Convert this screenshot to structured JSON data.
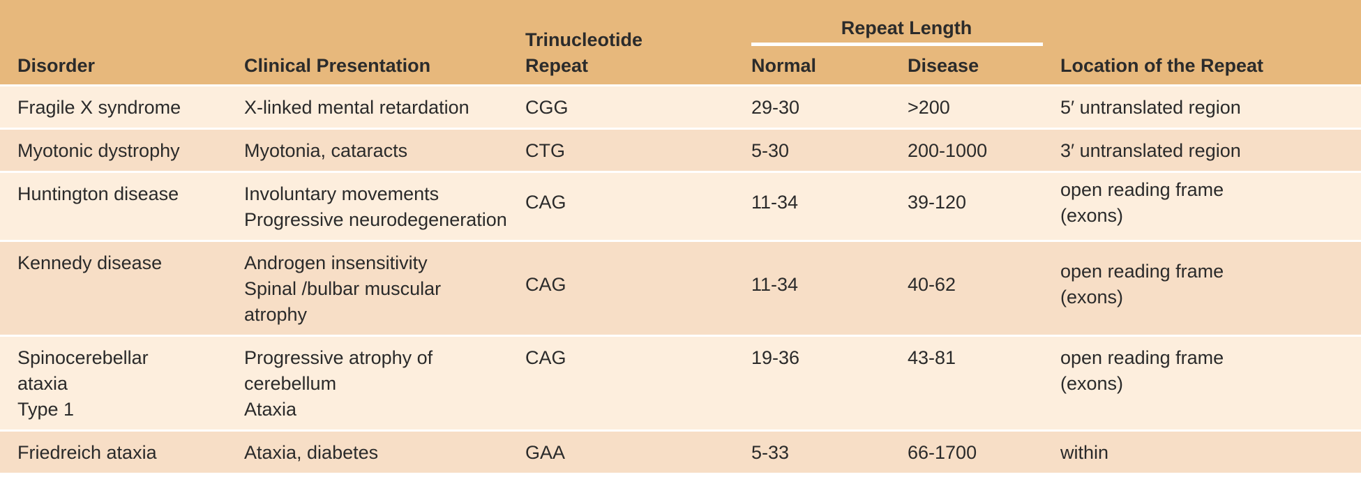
{
  "header": {
    "disorder": "Disorder",
    "clinical_presentation": "Clinical Presentation",
    "trinucleotide_repeat": "Trinucleotide Repeat",
    "repeat_length": "Repeat Length",
    "normal": "Normal",
    "disease": "Disease",
    "location": "Location of the Repeat"
  },
  "rows": [
    [
      "Fragile X syndrome",
      "X-linked mental retardation",
      "CGG",
      "29-30",
      ">200",
      "5′ untranslated region"
    ],
    [
      "Myotonic dystrophy",
      "Myotonia, cataracts",
      "CTG",
      "5-30",
      "200-1000",
      "3′ untranslated region"
    ],
    [
      "Huntington disease",
      [
        "Involuntary movements",
        "Progressive neurodegeneration"
      ],
      "CAG",
      "11-34",
      "39-120",
      "open reading frame (exons)"
    ],
    [
      "Kennedy disease",
      [
        "Androgen insensitivity",
        "Spinal /bulbar muscular atrophy"
      ],
      "CAG",
      "11-34",
      "40-62",
      "open reading frame (exons)"
    ],
    [
      [
        "Spinocerebellar ataxia",
        "Type 1"
      ],
      [
        "Progressive atrophy of cerebellum",
        "Ataxia"
      ],
      "CAG",
      "19-36",
      "43-81",
      "open reading frame (exons)"
    ],
    [
      "Friedreich ataxia",
      "Ataxia, diabetes",
      "GAA",
      "5-33",
      "66-1700",
      "within"
    ]
  ]
}
